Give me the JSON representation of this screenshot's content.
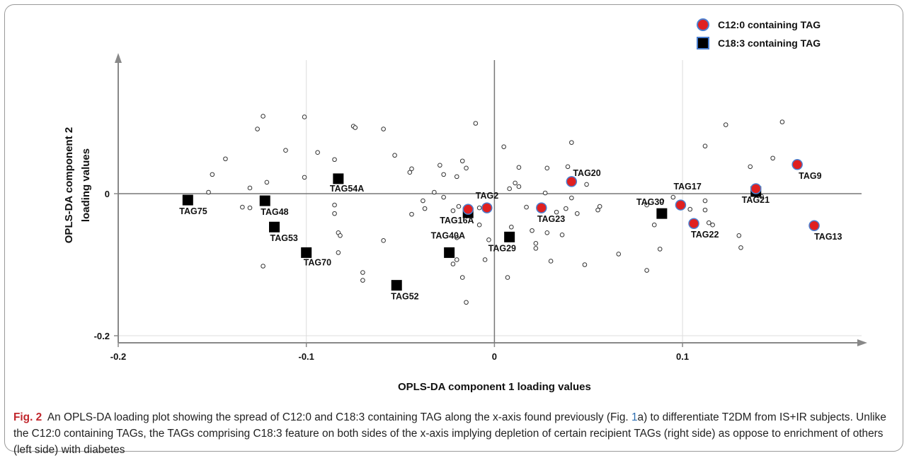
{
  "legend": {
    "c12_label": "C12:0 containing TAG",
    "c18_label": "C18:3 containing TAG",
    "c12_color": "#e02020",
    "c18_color": "#000000",
    "marker_edge_color": "#4a7fd0"
  },
  "caption": {
    "fig_label": "Fig. 2",
    "text_before_ref": "An OPLS-DA loading plot showing the spread of C12:0 and C18:3 containing TAG along the x-axis found previously (Fig. ",
    "ref_num": "1",
    "ref_letter": "a",
    "text_after_ref": ") to differentiate T2DM from IS+IR subjects. Unlike the C12:0 containing TAGs, the TAGs comprising C18:3 feature on both sides of the x-axis implying depletion of certain recipient TAGs (right side) as oppose to enrichment of others (left side) with diabetes"
  },
  "chart_data": {
    "type": "scatter",
    "xlabel": "OPLS-DA component 1 loading values",
    "ylabel_lines": [
      "OPLS-DA component 2",
      "loading values"
    ],
    "xlim": [
      -0.2,
      0.2
    ],
    "ylim": [
      -0.21,
      0.18
    ],
    "xticks": [
      -0.2,
      -0.1,
      0,
      0.1
    ],
    "xtick_labels": [
      "-0.2",
      "-0.1",
      "0",
      "0.1"
    ],
    "yticks": [
      0,
      -0.2
    ],
    "ytick_labels": [
      "0",
      "-0.2"
    ],
    "grid": true,
    "legend_position": "top-right",
    "series": [
      {
        "name": "C12:0 containing TAG",
        "marker": "circle",
        "color": "#e02020",
        "points": [
          {
            "label": "TAG9",
            "x": 0.161,
            "y": 0.041
          },
          {
            "label": "TAG20",
            "x": 0.041,
            "y": 0.017
          },
          {
            "label": "TAG17",
            "x": 0.099,
            "y": -0.016
          },
          {
            "label": "TAG2",
            "x": -0.004,
            "y": -0.02
          },
          {
            "label": "TAG23",
            "x": 0.025,
            "y": -0.02
          },
          {
            "label": "TAG22",
            "x": 0.106,
            "y": -0.042
          },
          {
            "label": "TAG13",
            "x": 0.17,
            "y": -0.045
          },
          {
            "label": "TAG16A",
            "x": -0.014,
            "y": -0.022
          },
          {
            "label": "TAG21",
            "x": 0.139,
            "y": 0.007
          }
        ]
      },
      {
        "name": "C18:3 containing TAG",
        "marker": "square",
        "color": "#000000",
        "points": [
          {
            "label": "TAG75",
            "x": -0.163,
            "y": -0.009
          },
          {
            "label": "TAG48",
            "x": -0.122,
            "y": -0.01
          },
          {
            "label": "TAG53",
            "x": -0.117,
            "y": -0.047
          },
          {
            "label": "TAG54A",
            "x": -0.083,
            "y": 0.021
          },
          {
            "label": "TAG70",
            "x": -0.1,
            "y": -0.083
          },
          {
            "label": "TAG52",
            "x": -0.052,
            "y": -0.129
          },
          {
            "label": "TAG40A",
            "x": -0.024,
            "y": -0.083
          },
          {
            "label": "TAG16A",
            "x": -0.014,
            "y": -0.027
          },
          {
            "label": "TAG29",
            "x": 0.008,
            "y": -0.061
          },
          {
            "label": "TAG30",
            "x": 0.089,
            "y": -0.028
          },
          {
            "label": "TAG21",
            "x": 0.139,
            "y": 0.003
          }
        ]
      }
    ],
    "other_points": [
      [
        -0.123,
        0.109
      ],
      [
        -0.101,
        0.108
      ],
      [
        -0.126,
        0.091
      ],
      [
        -0.075,
        0.095
      ],
      [
        -0.074,
        0.093
      ],
      [
        -0.059,
        0.091
      ],
      [
        -0.01,
        0.099
      ],
      [
        0.041,
        0.072
      ],
      [
        0.123,
        0.097
      ],
      [
        0.153,
        0.101
      ],
      [
        -0.111,
        0.061
      ],
      [
        -0.094,
        0.058
      ],
      [
        -0.053,
        0.054
      ],
      [
        0.005,
        0.066
      ],
      [
        0.112,
        0.067
      ],
      [
        0.148,
        0.05
      ],
      [
        -0.143,
        0.049
      ],
      [
        -0.085,
        0.048
      ],
      [
        -0.017,
        0.046
      ],
      [
        -0.029,
        0.04
      ],
      [
        -0.044,
        0.035
      ],
      [
        -0.045,
        0.03
      ],
      [
        -0.015,
        0.036
      ],
      [
        0.013,
        0.037
      ],
      [
        0.028,
        0.036
      ],
      [
        0.039,
        0.038
      ],
      [
        0.136,
        0.038
      ],
      [
        -0.15,
        0.027
      ],
      [
        -0.101,
        0.023
      ],
      [
        -0.027,
        0.027
      ],
      [
        -0.02,
        0.024
      ],
      [
        0.011,
        0.015
      ],
      [
        0.013,
        0.01
      ],
      [
        0.049,
        0.013
      ],
      [
        -0.13,
        0.008
      ],
      [
        -0.121,
        0.016
      ],
      [
        0.008,
        0.007
      ],
      [
        0.027,
        0.001
      ],
      [
        -0.152,
        0.002
      ],
      [
        -0.032,
        0.002
      ],
      [
        -0.027,
        -0.005
      ],
      [
        -0.038,
        -0.01
      ],
      [
        0.041,
        -0.006
      ],
      [
        0.095,
        -0.005
      ],
      [
        0.112,
        -0.01
      ],
      [
        0.142,
        -0.004
      ],
      [
        0.089,
        -0.01
      ],
      [
        -0.134,
        -0.019
      ],
      [
        -0.13,
        -0.02
      ],
      [
        -0.085,
        -0.016
      ],
      [
        -0.037,
        -0.021
      ],
      [
        -0.019,
        -0.018
      ],
      [
        -0.013,
        -0.02
      ],
      [
        0.017,
        -0.019
      ],
      [
        0.056,
        -0.018
      ],
      [
        0.081,
        -0.016
      ],
      [
        0.104,
        -0.022
      ],
      [
        0.112,
        -0.023
      ],
      [
        -0.085,
        -0.028
      ],
      [
        -0.044,
        -0.029
      ],
      [
        -0.022,
        -0.024
      ],
      [
        -0.008,
        -0.02
      ],
      [
        0.033,
        -0.026
      ],
      [
        0.038,
        -0.021
      ],
      [
        0.044,
        -0.028
      ],
      [
        0.055,
        -0.023
      ],
      [
        0.114,
        -0.041
      ],
      [
        0.116,
        -0.044
      ],
      [
        -0.008,
        -0.044
      ],
      [
        0.009,
        -0.047
      ],
      [
        0.02,
        -0.052
      ],
      [
        0.028,
        -0.055
      ],
      [
        0.036,
        -0.058
      ],
      [
        0.085,
        -0.044
      ],
      [
        -0.083,
        -0.055
      ],
      [
        -0.082,
        -0.059
      ],
      [
        -0.02,
        -0.062
      ],
      [
        0.022,
        -0.07
      ],
      [
        0.022,
        -0.077
      ],
      [
        -0.003,
        -0.065
      ],
      [
        -0.059,
        -0.066
      ],
      [
        0.13,
        -0.059
      ],
      [
        0.131,
        -0.076
      ],
      [
        0.088,
        -0.078
      ],
      [
        -0.083,
        -0.083
      ],
      [
        -0.02,
        -0.093
      ],
      [
        -0.005,
        -0.093
      ],
      [
        0.066,
        -0.085
      ],
      [
        -0.123,
        -0.102
      ],
      [
        0.03,
        -0.095
      ],
      [
        0.048,
        -0.1
      ],
      [
        0.081,
        -0.108
      ],
      [
        -0.07,
        -0.111
      ],
      [
        -0.07,
        -0.122
      ],
      [
        -0.022,
        -0.099
      ],
      [
        -0.017,
        -0.118
      ],
      [
        0.007,
        -0.118
      ],
      [
        -0.015,
        -0.153
      ]
    ]
  }
}
